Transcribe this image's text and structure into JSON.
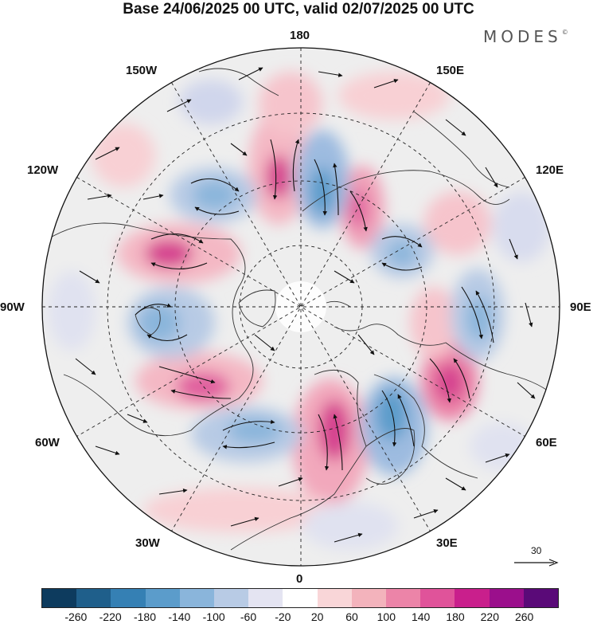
{
  "title": "Base 24/06/2025 00 UTC, valid 02/07/2025 00 UTC",
  "brand": {
    "name": "MODES",
    "mark": "©"
  },
  "longitude_labels": {
    "lon_180": "180",
    "lon_150e": "150E",
    "lon_120e": "120E",
    "lon_90e": "90E",
    "lon_60e": "60E",
    "lon_30e": "30E",
    "lon_0": "0",
    "lon_30w": "30W",
    "lon_60w": "60W",
    "lon_90w": "90W",
    "lon_120w": "120W",
    "lon_150w": "150W"
  },
  "reference_vector": {
    "value": "30"
  },
  "colorbar": {
    "colors": [
      "#0d3b5e",
      "#1f5f8b",
      "#3580b4",
      "#5b9ccb",
      "#8ab5db",
      "#b8cbe5",
      "#e4e4f2",
      "#ffffff",
      "#f9d6d8",
      "#f3b3bc",
      "#ec84a8",
      "#e0539a",
      "#c91f8c",
      "#9b0f8c",
      "#5a0a78"
    ],
    "tick_labels": [
      "-260",
      "-220",
      "-180",
      "-140",
      "-100",
      "-60",
      "-20",
      "20",
      "60",
      "100",
      "140",
      "180",
      "220",
      "260"
    ]
  }
}
